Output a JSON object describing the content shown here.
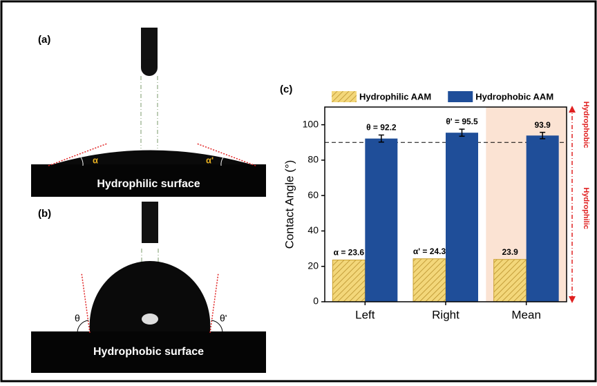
{
  "panels": {
    "a": {
      "label": "(a)",
      "caption": "Hydrophilic surface",
      "angle_left": "α",
      "angle_right": "α'"
    },
    "b": {
      "label": "(b)",
      "caption": "Hydrophobic surface",
      "angle_left": "θ",
      "angle_right": "θ'"
    },
    "c": {
      "label": "(c)"
    }
  },
  "chart_data": {
    "type": "bar",
    "y_label": "Contact Angle (°)",
    "categories": [
      "Left",
      "Right",
      "Mean"
    ],
    "series": [
      {
        "name": "Hydrophilic AAM",
        "color": "#e8c24a",
        "hatch": true,
        "values": [
          23.6,
          24.3,
          23.9
        ],
        "value_labels": [
          "α = 23.6",
          "α' = 24.3",
          "23.9"
        ]
      },
      {
        "name": "Hydrophobic AAM",
        "color": "#1f4e99",
        "values": [
          92.2,
          95.5,
          93.9
        ],
        "errors": [
          2,
          2,
          1.8
        ],
        "value_labels": [
          "θ = 92.2",
          "θ' = 95.5",
          "93.9"
        ]
      }
    ],
    "ylim": [
      0,
      110
    ],
    "yticks": [
      0,
      20,
      40,
      60,
      80,
      100
    ],
    "reference_line": 90,
    "highlight_category": "Mean",
    "highlight_color": "#fbe3d3",
    "annotations": [
      "Hydrophobic",
      "Hydrophilic"
    ],
    "annotation_color": "#e02020",
    "legend": "top"
  }
}
